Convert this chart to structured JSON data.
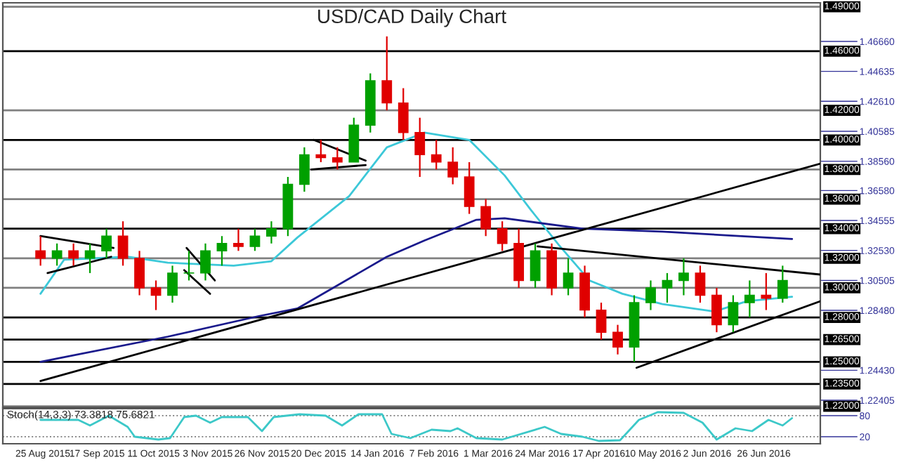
{
  "chart_data": [
    {
      "type": "candlestick",
      "title": "USD/CAD Daily Chart",
      "tick_labels": "y",
      "x": [
        "2015-08-24",
        "2015-08-31",
        "2015-09-07",
        "2015-09-14",
        "2015-09-21",
        "2015-09-28",
        "2015-10-05",
        "2015-10-12",
        "2015-10-19",
        "2015-10-26",
        "2015-11-02",
        "2015-11-09",
        "2015-11-16",
        "2015-11-23",
        "2015-11-30",
        "2015-12-07",
        "2015-12-14",
        "2015-12-21",
        "2015-12-28",
        "2016-01-04",
        "2016-01-11",
        "2016-01-18",
        "2016-01-25",
        "2016-02-01",
        "2016-02-08",
        "2016-02-15",
        "2016-02-22",
        "2016-02-29",
        "2016-03-07",
        "2016-03-14",
        "2016-03-21",
        "2016-03-28",
        "2016-04-04",
        "2016-04-11",
        "2016-04-18",
        "2016-04-25",
        "2016-05-02",
        "2016-05-09",
        "2016-05-16",
        "2016-05-23",
        "2016-05-30",
        "2016-06-06",
        "2016-06-13",
        "2016-06-20",
        "2016-06-27",
        "2016-07-04"
      ],
      "ohlc": [
        [
          1.325,
          1.335,
          1.315,
          1.32
        ],
        [
          1.32,
          1.33,
          1.315,
          1.325
        ],
        [
          1.325,
          1.33,
          1.315,
          1.32
        ],
        [
          1.32,
          1.33,
          1.31,
          1.325
        ],
        [
          1.325,
          1.34,
          1.32,
          1.335
        ],
        [
          1.335,
          1.345,
          1.315,
          1.32
        ],
        [
          1.32,
          1.325,
          1.295,
          1.3
        ],
        [
          1.3,
          1.305,
          1.285,
          1.295
        ],
        [
          1.295,
          1.315,
          1.29,
          1.31
        ],
        [
          1.31,
          1.325,
          1.305,
          1.31
        ],
        [
          1.31,
          1.33,
          1.305,
          1.325
        ],
        [
          1.325,
          1.335,
          1.315,
          1.33
        ],
        [
          1.33,
          1.34,
          1.325,
          1.328
        ],
        [
          1.328,
          1.34,
          1.325,
          1.335
        ],
        [
          1.335,
          1.345,
          1.33,
          1.34
        ],
        [
          1.34,
          1.375,
          1.335,
          1.37
        ],
        [
          1.37,
          1.395,
          1.365,
          1.39
        ],
        [
          1.39,
          1.4,
          1.385,
          1.388
        ],
        [
          1.388,
          1.395,
          1.38,
          1.385
        ],
        [
          1.385,
          1.415,
          1.385,
          1.41
        ],
        [
          1.41,
          1.445,
          1.405,
          1.44
        ],
        [
          1.44,
          1.47,
          1.42,
          1.425
        ],
        [
          1.425,
          1.435,
          1.4,
          1.405
        ],
        [
          1.405,
          1.415,
          1.375,
          1.39
        ],
        [
          1.39,
          1.4,
          1.38,
          1.385
        ],
        [
          1.385,
          1.395,
          1.37,
          1.375
        ],
        [
          1.375,
          1.385,
          1.35,
          1.355
        ],
        [
          1.355,
          1.36,
          1.335,
          1.34
        ],
        [
          1.34,
          1.345,
          1.325,
          1.33
        ],
        [
          1.33,
          1.34,
          1.3,
          1.305
        ],
        [
          1.305,
          1.33,
          1.3,
          1.325
        ],
        [
          1.325,
          1.33,
          1.295,
          1.3
        ],
        [
          1.3,
          1.32,
          1.295,
          1.31
        ],
        [
          1.31,
          1.315,
          1.28,
          1.285
        ],
        [
          1.285,
          1.29,
          1.265,
          1.27
        ],
        [
          1.27,
          1.275,
          1.255,
          1.26
        ],
        [
          1.26,
          1.295,
          1.25,
          1.29
        ],
        [
          1.29,
          1.305,
          1.285,
          1.3
        ],
        [
          1.3,
          1.31,
          1.29,
          1.305
        ],
        [
          1.305,
          1.32,
          1.295,
          1.31
        ],
        [
          1.31,
          1.315,
          1.29,
          1.295
        ],
        [
          1.295,
          1.3,
          1.27,
          1.275
        ],
        [
          1.275,
          1.295,
          1.27,
          1.29
        ],
        [
          1.29,
          1.305,
          1.28,
          1.295
        ],
        [
          1.295,
          1.31,
          1.285,
          1.293
        ],
        [
          1.293,
          1.315,
          1.29,
          1.305
        ]
      ],
      "colors": [
        "#e00000",
        "#00a000",
        "#e00000",
        "#00a000",
        "#00a000",
        "#e00000",
        "#e00000",
        "#e00000",
        "#00a000",
        "#00a000",
        "#00a000",
        "#00a000",
        "#e00000",
        "#00a000",
        "#00a000",
        "#00a000",
        "#00a000",
        "#e00000",
        "#e00000",
        "#00a000",
        "#00a000",
        "#e00000",
        "#e00000",
        "#e00000",
        "#e00000",
        "#e00000",
        "#e00000",
        "#e00000",
        "#e00000",
        "#e00000",
        "#00a000",
        "#e00000",
        "#00a000",
        "#e00000",
        "#e00000",
        "#e00000",
        "#00a000",
        "#00a000",
        "#00a000",
        "#00a000",
        "#e00000",
        "#e00000",
        "#00a000",
        "#00a000",
        "#e00000",
        "#00a000"
      ],
      "series": [
        {
          "type": "line",
          "color": "#3cc8d8",
          "x": [
            "2015-08-24",
            "2015-09-03",
            "2015-09-30",
            "2015-10-17",
            "2015-11-14",
            "2015-11-30",
            "2015-12-11",
            "2016-01-02",
            "2016-01-18",
            "2016-02-03",
            "2016-02-22",
            "2016-03-08",
            "2016-03-19",
            "2016-03-31",
            "2016-04-13",
            "2016-04-27",
            "2016-05-14",
            "2016-06-05",
            "2016-06-19",
            "2016-07-08"
          ],
          "values": [
            1.296,
            1.319,
            1.321,
            1.317,
            1.315,
            1.318,
            1.334,
            1.362,
            1.395,
            1.405,
            1.4,
            1.376,
            1.353,
            1.329,
            1.305,
            1.296,
            1.289,
            1.284,
            1.291,
            1.294
          ]
        },
        {
          "type": "line",
          "color": "#1a1a8c",
          "x": [
            "2015-08-24",
            "2015-10-17",
            "2015-11-25",
            "2015-12-11",
            "2016-01-18",
            "2016-02-03",
            "2016-02-25",
            "2016-03-08",
            "2016-04-10",
            "2016-05-14",
            "2016-07-08"
          ],
          "values": [
            1.25,
            1.267,
            1.281,
            1.286,
            1.321,
            1.332,
            1.346,
            1.347,
            1.34,
            1.338,
            1.333
          ]
        },
        {
          "type": "line",
          "color": "#000000",
          "x": [
            "2015-08-24",
            "2016-07-20"
          ],
          "values": [
            1.237,
            1.384
          ]
        },
        {
          "type": "line",
          "color": "#000000",
          "x": [
            "2016-05-03",
            "2016-07-20"
          ],
          "values": [
            1.246,
            1.291
          ]
        },
        {
          "type": "line",
          "color": "#000000",
          "x": [
            "2016-03-22",
            "2016-07-20"
          ],
          "values": [
            1.328,
            1.309
          ]
        },
        {
          "type": "line",
          "color": "#000000",
          "x": [
            "2015-08-24",
            "2015-09-24"
          ],
          "values": [
            1.335,
            1.327
          ]
        },
        {
          "type": "line",
          "color": "#000000",
          "x": [
            "2015-08-27",
            "2015-09-23"
          ],
          "values": [
            1.31,
            1.321
          ]
        },
        {
          "type": "line",
          "color": "#000000",
          "x": [
            "2015-10-25",
            "2015-11-06"
          ],
          "values": [
            1.327,
            1.305
          ]
        },
        {
          "type": "line",
          "color": "#000000",
          "x": [
            "2015-10-24",
            "2015-11-04"
          ],
          "values": [
            1.312,
            1.296
          ]
        },
        {
          "type": "line",
          "color": "#000000",
          "x": [
            "2015-12-18",
            "2016-01-09"
          ],
          "values": [
            1.4,
            1.386
          ]
        },
        {
          "type": "line",
          "color": "#000000",
          "x": [
            "2015-12-17",
            "2016-01-09"
          ],
          "values": [
            1.38,
            1.383
          ]
        }
      ],
      "ref_lines": [
        {
          "axis": "y",
          "value": 1.49,
          "label": "1.49000",
          "color": "#808080"
        },
        {
          "axis": "y",
          "value": 1.46,
          "label": "1.46000",
          "color": "#000000"
        },
        {
          "axis": "y",
          "value": 1.42,
          "label": "1.42000",
          "color": "#808080"
        },
        {
          "axis": "y",
          "value": 1.4,
          "label": "1.40000",
          "color": "#000000"
        },
        {
          "axis": "y",
          "value": 1.38,
          "label": "1.38000",
          "color": "#808080"
        },
        {
          "axis": "y",
          "value": 1.36,
          "label": "1.36000",
          "color": "#808080"
        },
        {
          "axis": "y",
          "value": 1.34,
          "label": "1.34000",
          "color": "#000000"
        },
        {
          "axis": "y",
          "value": 1.32,
          "label": "1.32000",
          "color": "#808080"
        },
        {
          "axis": "y",
          "value": 1.3,
          "label": "1.30000",
          "color": "#808080"
        },
        {
          "axis": "y",
          "value": 1.28,
          "label": "1.28000",
          "color": "#000000"
        },
        {
          "axis": "y",
          "value": 1.265,
          "label": "1.26500",
          "color": "#000000"
        },
        {
          "axis": "y",
          "value": 1.25,
          "label": "1.25000",
          "color": "#000000"
        },
        {
          "axis": "y",
          "value": 1.235,
          "label": "1.23500",
          "color": "#000000"
        },
        {
          "axis": "y",
          "value": 1.22,
          "label": "1.22000",
          "color": "#808080"
        }
      ],
      "xlim": [
        "2015-08-08",
        "2016-07-20"
      ],
      "ylim": [
        1.2193,
        1.4927
      ],
      "yticks": [
        {
          "value": 1.4666,
          "label": "1.46660"
        },
        {
          "value": 1.44635,
          "label": "1.44635"
        },
        {
          "value": 1.4261,
          "label": "1.42610"
        },
        {
          "value": 1.40585,
          "label": "1.40585"
        },
        {
          "value": 1.3856,
          "label": "1.38560"
        },
        {
          "value": 1.3658,
          "label": "1.36580"
        },
        {
          "value": 1.34555,
          "label": "1.34555"
        },
        {
          "value": 1.3253,
          "label": "1.32530"
        },
        {
          "value": 1.30505,
          "label": "1.30505"
        },
        {
          "value": 1.2848,
          "label": "1.28480"
        },
        {
          "value": 1.2443,
          "label": "1.24430"
        },
        {
          "value": 1.22405,
          "label": "1.22405"
        }
      ]
    },
    {
      "type": "line",
      "grid": "y",
      "annotations": [
        "Stoch(14,3,3) 73.3818 75.6821"
      ],
      "series": [
        {
          "color": "#3cc8c8",
          "x": [
            "2015-08-24",
            "2015-09-09",
            "2015-09-14",
            "2015-09-22",
            "2015-09-30",
            "2015-10-03",
            "2015-10-13",
            "2015-10-18",
            "2015-10-24",
            "2015-10-29",
            "2015-11-04",
            "2015-11-09",
            "2015-11-20",
            "2015-11-26",
            "2015-12-01",
            "2015-12-12",
            "2015-12-23",
            "2015-12-30",
            "2016-01-06",
            "2016-01-16",
            "2016-01-20",
            "2016-01-28",
            "2016-02-06",
            "2016-02-14",
            "2016-02-17",
            "2016-02-25",
            "2016-03-07",
            "2016-03-25",
            "2016-04-01",
            "2016-04-10",
            "2016-04-17",
            "2016-04-26",
            "2016-05-04",
            "2016-05-12",
            "2016-05-23",
            "2016-05-31",
            "2016-06-06",
            "2016-06-14",
            "2016-06-21",
            "2016-06-28",
            "2016-07-04",
            "2016-07-08"
          ],
          "values": [
            68,
            68,
            52,
            80,
            48,
            20,
            12,
            16,
            76,
            80,
            60,
            76,
            76,
            36,
            76,
            84,
            80,
            52,
            84,
            84,
            28,
            16,
            40,
            36,
            44,
            16,
            12,
            48,
            28,
            20,
            8,
            10,
            68,
            90,
            88,
            60,
            12,
            44,
            36,
            68,
            52,
            73
          ]
        }
      ],
      "xlim": [
        "2015-08-08",
        "2016-07-20"
      ],
      "xticks": [
        {
          "value": "2015-08-25",
          "label": "25 Aug 2015"
        },
        {
          "value": "2015-09-17",
          "label": "17 Sep 2015"
        },
        {
          "value": "2015-10-11",
          "label": "11 Oct 2015"
        },
        {
          "value": "2015-11-03",
          "label": "3 Nov 2015"
        },
        {
          "value": "2015-11-26",
          "label": "26 Nov 2015"
        },
        {
          "value": "2015-12-20",
          "label": "20 Dec 2015"
        },
        {
          "value": "2016-01-14",
          "label": "14 Jan 2016"
        },
        {
          "value": "2016-02-07",
          "label": "7 Feb 2016"
        },
        {
          "value": "2016-03-01",
          "label": "1 Mar 2016"
        },
        {
          "value": "2016-03-24",
          "label": "24 Mar 2016"
        },
        {
          "value": "2016-04-17",
          "label": "17 Apr 2016"
        },
        {
          "value": "2016-05-10",
          "label": "10 May 2016"
        },
        {
          "value": "2016-06-02",
          "label": "2 Jun 2016"
        },
        {
          "value": "2016-06-26",
          "label": "26 Jun 2016"
        }
      ],
      "ylim": [
        0,
        100
      ],
      "yticks": [
        80,
        20
      ]
    }
  ]
}
